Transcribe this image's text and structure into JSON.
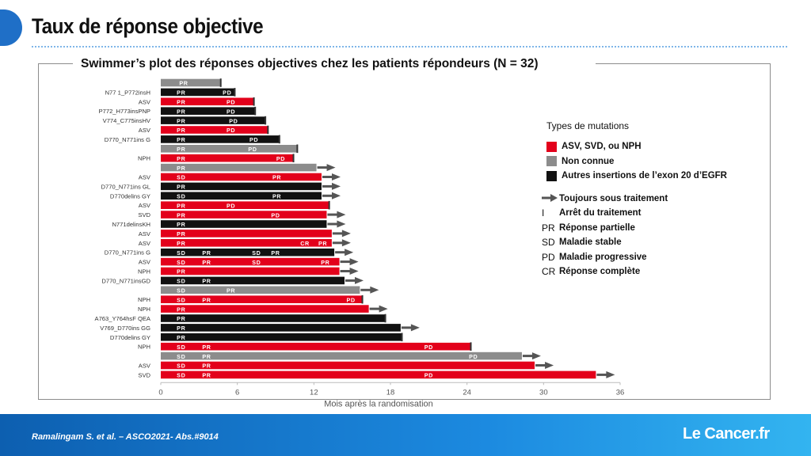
{
  "page": {
    "title": "Taux de réponse objective",
    "citation": "Ramalingam S. et al. – ASCO2021- Abs.#9014",
    "brand": "Le Cancer.fr"
  },
  "colors": {
    "red": "#e3001b",
    "grey": "#8c8c8c",
    "black": "#111111",
    "arrow": "#555555"
  },
  "legend": {
    "heading": "Types de mutations",
    "types": [
      {
        "color": "#e3001b",
        "label": "ASV, SVD, ou NPH"
      },
      {
        "color": "#8c8c8c",
        "label": "Non connue"
      },
      {
        "color": "#111111",
        "label": "Autres insertions de l’exon 20 d’EGFR"
      }
    ],
    "symbols": [
      {
        "symbol": "arrow-icon",
        "label": "Toujours sous traitement"
      },
      {
        "symbol": "I",
        "label": "Arrêt du traitement"
      },
      {
        "symbol": "PR",
        "label": "Réponse partielle"
      },
      {
        "symbol": "SD",
        "label": "Maladie stable"
      },
      {
        "symbol": "PD",
        "label": "Maladie progressive"
      },
      {
        "symbol": "CR",
        "label": "Réponse complète"
      }
    ]
  },
  "chart_data": {
    "type": "bar",
    "orientation": "horizontal",
    "title": "Swimmer’s plot des réponses objectives chez les patients répondeurs (N = 32)",
    "xlabel": "Mois après la randomisation",
    "xlim": [
      0,
      36
    ],
    "xticks": [
      0,
      6,
      12,
      18,
      24,
      30,
      36
    ],
    "rows": [
      {
        "label": "",
        "type": "grey",
        "end": 4.7,
        "ongoing": false,
        "marks": [
          {
            "t": "PR",
            "x": 1.8
          }
        ]
      },
      {
        "label": "N77 1_P772insH",
        "type": "black",
        "end": 5.8,
        "ongoing": false,
        "marks": [
          {
            "t": "PR",
            "x": 1.6
          },
          {
            "t": "PD",
            "x": 5.2
          }
        ]
      },
      {
        "label": "ASV",
        "type": "red",
        "end": 7.3,
        "ongoing": false,
        "marks": [
          {
            "t": "PR",
            "x": 1.6
          },
          {
            "t": "PD",
            "x": 5.5
          }
        ]
      },
      {
        "label": "P772_H773insPNP",
        "type": "black",
        "end": 7.4,
        "ongoing": false,
        "marks": [
          {
            "t": "PR",
            "x": 1.6
          },
          {
            "t": "PD",
            "x": 5.5
          }
        ]
      },
      {
        "label": "V774_C775insHV",
        "type": "black",
        "end": 8.2,
        "ongoing": false,
        "marks": [
          {
            "t": "PR",
            "x": 1.6
          },
          {
            "t": "PD",
            "x": 5.7
          }
        ]
      },
      {
        "label": "ASV",
        "type": "red",
        "end": 8.4,
        "ongoing": false,
        "marks": [
          {
            "t": "PR",
            "x": 1.6
          },
          {
            "t": "PD",
            "x": 5.5
          }
        ]
      },
      {
        "label": "D770_N771ins G",
        "type": "black",
        "end": 9.3,
        "ongoing": false,
        "marks": [
          {
            "t": "PR",
            "x": 1.6
          },
          {
            "t": "PD",
            "x": 7.3
          }
        ]
      },
      {
        "label": "",
        "type": "grey",
        "end": 10.7,
        "ongoing": false,
        "marks": [
          {
            "t": "PR",
            "x": 1.6
          },
          {
            "t": "PD",
            "x": 7.2
          }
        ]
      },
      {
        "label": "NPH",
        "type": "red",
        "end": 10.4,
        "ongoing": false,
        "marks": [
          {
            "t": "PR",
            "x": 1.6
          },
          {
            "t": "PD",
            "x": 9.4
          }
        ]
      },
      {
        "label": "",
        "type": "grey",
        "end": 12.2,
        "ongoing": true,
        "marks": [
          {
            "t": "PR",
            "x": 1.6
          }
        ]
      },
      {
        "label": "ASV",
        "type": "red",
        "end": 12.6,
        "ongoing": true,
        "marks": [
          {
            "t": "SD",
            "x": 1.6
          },
          {
            "t": "PR",
            "x": 9.1
          }
        ]
      },
      {
        "label": "D770_N771ins GL",
        "type": "black",
        "end": 12.6,
        "ongoing": true,
        "marks": [
          {
            "t": "PR",
            "x": 1.6
          }
        ]
      },
      {
        "label": "D770delins GY",
        "type": "black",
        "end": 12.6,
        "ongoing": true,
        "marks": [
          {
            "t": "SD",
            "x": 1.6
          },
          {
            "t": "PR",
            "x": 9.1
          }
        ]
      },
      {
        "label": "ASV",
        "type": "red",
        "end": 13.2,
        "ongoing": false,
        "marks": [
          {
            "t": "PR",
            "x": 1.6
          },
          {
            "t": "PD",
            "x": 5.5
          }
        ]
      },
      {
        "label": "SVD",
        "type": "red",
        "end": 13.0,
        "ongoing": true,
        "marks": [
          {
            "t": "PR",
            "x": 1.6
          },
          {
            "t": "PD",
            "x": 9.0
          }
        ]
      },
      {
        "label": "N771delinsKH",
        "type": "black",
        "end": 13.0,
        "ongoing": true,
        "marks": [
          {
            "t": "PR",
            "x": 1.6
          }
        ]
      },
      {
        "label": "ASV",
        "type": "red",
        "end": 13.4,
        "ongoing": true,
        "marks": [
          {
            "t": "PR",
            "x": 1.6
          }
        ]
      },
      {
        "label": "ASV",
        "type": "red",
        "end": 13.4,
        "ongoing": true,
        "marks": [
          {
            "t": "PR",
            "x": 1.6
          },
          {
            "t": "CR",
            "x": 11.3
          },
          {
            "t": "PR",
            "x": 12.7
          }
        ]
      },
      {
        "label": "D770_N771ins G",
        "type": "black",
        "end": 13.6,
        "ongoing": true,
        "marks": [
          {
            "t": "SD",
            "x": 1.6
          },
          {
            "t": "PR",
            "x": 3.6
          },
          {
            "t": "SD",
            "x": 7.5
          },
          {
            "t": "PR",
            "x": 9.0
          }
        ]
      },
      {
        "label": "ASV",
        "type": "red",
        "end": 14.0,
        "ongoing": true,
        "marks": [
          {
            "t": "SD",
            "x": 1.6
          },
          {
            "t": "PR",
            "x": 3.6
          },
          {
            "t": "SD",
            "x": 7.5
          },
          {
            "t": "PR",
            "x": 12.9
          }
        ]
      },
      {
        "label": "NPH",
        "type": "red",
        "end": 14.0,
        "ongoing": true,
        "marks": [
          {
            "t": "PR",
            "x": 1.6
          }
        ]
      },
      {
        "label": "D770_N771insGD",
        "type": "black",
        "end": 14.4,
        "ongoing": true,
        "marks": [
          {
            "t": "SD",
            "x": 1.6
          },
          {
            "t": "PR",
            "x": 3.6
          }
        ]
      },
      {
        "label": "",
        "type": "grey",
        "end": 15.6,
        "ongoing": true,
        "marks": [
          {
            "t": "SD",
            "x": 1.6
          },
          {
            "t": "PR",
            "x": 5.5
          }
        ]
      },
      {
        "label": "NPH",
        "type": "red",
        "end": 15.8,
        "ongoing": false,
        "marks": [
          {
            "t": "SD",
            "x": 1.6
          },
          {
            "t": "PR",
            "x": 3.6
          },
          {
            "t": "PD",
            "x": 14.9
          }
        ]
      },
      {
        "label": "NPH",
        "type": "red",
        "end": 16.3,
        "ongoing": true,
        "marks": [
          {
            "t": "PR",
            "x": 1.6
          }
        ]
      },
      {
        "label": "A763_Y764hsF QEA",
        "type": "black",
        "end": 17.6,
        "ongoing": false,
        "marks": [
          {
            "t": "PR",
            "x": 1.6
          }
        ]
      },
      {
        "label": "V769_D770ins GG",
        "type": "black",
        "end": 18.8,
        "ongoing": true,
        "marks": [
          {
            "t": "PR",
            "x": 1.6
          }
        ]
      },
      {
        "label": "D770delins GY",
        "type": "black",
        "end": 18.9,
        "ongoing": false,
        "marks": [
          {
            "t": "PR",
            "x": 1.6
          }
        ]
      },
      {
        "label": "NPH",
        "type": "red",
        "end": 24.3,
        "ongoing": false,
        "marks": [
          {
            "t": "SD",
            "x": 1.6
          },
          {
            "t": "PR",
            "x": 3.6
          },
          {
            "t": "PD",
            "x": 21.0
          }
        ]
      },
      {
        "label": "",
        "type": "grey",
        "end": 28.3,
        "ongoing": true,
        "marks": [
          {
            "t": "SD",
            "x": 1.6
          },
          {
            "t": "PR",
            "x": 3.6
          },
          {
            "t": "PD",
            "x": 24.5
          }
        ]
      },
      {
        "label": "ASV",
        "type": "red",
        "end": 29.3,
        "ongoing": true,
        "marks": [
          {
            "t": "SD",
            "x": 1.6
          },
          {
            "t": "PR",
            "x": 3.6
          }
        ]
      },
      {
        "label": "SVD",
        "type": "red",
        "end": 34.1,
        "ongoing": true,
        "marks": [
          {
            "t": "SD",
            "x": 1.6
          },
          {
            "t": "PR",
            "x": 3.6
          },
          {
            "t": "PD",
            "x": 21.0
          }
        ]
      }
    ]
  }
}
